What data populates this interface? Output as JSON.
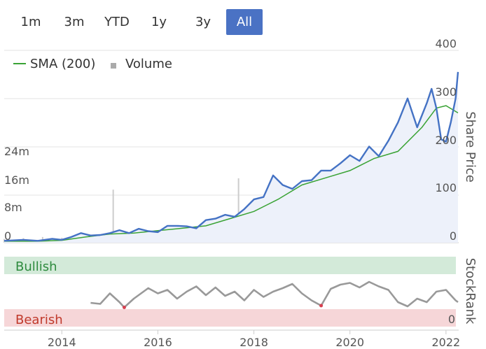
{
  "range_buttons": [
    "1m",
    "3m",
    "YTD",
    "1y",
    "3y",
    "All"
  ],
  "active_range": "All",
  "legend": {
    "sma_label": "SMA (200)",
    "volume_label": "Volume"
  },
  "colors": {
    "price_line": "#4472c4",
    "sma_line": "#3aa335",
    "volume_bar": "#cccccc",
    "bullish_band": "#d3ead9",
    "bearish_band": "#f6d6d8",
    "bullish_text": "#2e8b3e",
    "bearish_text": "#c0392b",
    "rank_line": "#999999",
    "rank_marker": "#d84050",
    "active_button": "#4a72c4",
    "price_fill": "#edf1fa"
  },
  "chart_data": {
    "type": "line",
    "title": "",
    "x_ticks": [
      "2014",
      "2016",
      "2018",
      "2020",
      "2022"
    ],
    "share_price": {
      "axis_label": "Share Price",
      "ylim": [
        0,
        400
      ],
      "y_ticks": [
        "400",
        "300",
        "200",
        "100",
        "0"
      ],
      "series": [
        {
          "name": "Share Price",
          "x": [
            2012.8,
            2013.2,
            2013.5,
            2013.8,
            2014.0,
            2014.2,
            2014.4,
            2014.6,
            2014.8,
            2015.0,
            2015.2,
            2015.4,
            2015.6,
            2015.8,
            2016.0,
            2016.2,
            2016.4,
            2016.6,
            2016.8,
            2017.0,
            2017.2,
            2017.4,
            2017.6,
            2017.8,
            2018.0,
            2018.2,
            2018.4,
            2018.6,
            2018.8,
            2019.0,
            2019.2,
            2019.4,
            2019.6,
            2019.8,
            2020.0,
            2020.2,
            2020.4,
            2020.6,
            2020.8,
            2021.0,
            2021.2,
            2021.4,
            2021.6,
            2021.7,
            2021.8,
            2021.9,
            2022.0,
            2022.1,
            2022.2,
            2022.25
          ],
          "values": [
            4,
            6,
            4,
            8,
            6,
            12,
            20,
            15,
            16,
            20,
            26,
            20,
            29,
            24,
            22,
            35,
            35,
            34,
            30,
            47,
            50,
            58,
            54,
            70,
            90,
            95,
            140,
            120,
            112,
            128,
            130,
            150,
            150,
            165,
            182,
            170,
            200,
            180,
            212,
            250,
            300,
            240,
            290,
            320,
            280,
            215,
            210,
            250,
            300,
            355
          ]
        },
        {
          "name": "SMA (200)",
          "x": [
            2012.8,
            2013.5,
            2014.0,
            2014.5,
            2015.0,
            2015.5,
            2016.0,
            2016.5,
            2017.0,
            2017.5,
            2018.0,
            2018.5,
            2019.0,
            2019.5,
            2020.0,
            2020.5,
            2021.0,
            2021.5,
            2021.8,
            2022.0,
            2022.25
          ],
          "values": [
            3,
            3,
            5,
            12,
            18,
            20,
            25,
            30,
            35,
            50,
            65,
            90,
            120,
            135,
            150,
            175,
            190,
            240,
            280,
            285,
            270
          ]
        }
      ]
    },
    "volume": {
      "axis_ticks": [
        "24m",
        "16m",
        "8m",
        "0"
      ],
      "ylim": [
        0,
        24
      ],
      "unit": "millions",
      "x": [
        2012.8,
        2013.2,
        2013.6,
        2014.0,
        2014.4,
        2014.8,
        2015.07,
        2015.2,
        2015.6,
        2016.0,
        2016.4,
        2016.8,
        2017.2,
        2017.6,
        2017.68,
        2018.0,
        2018.4,
        2018.8,
        2019.2,
        2019.6,
        2020.0,
        2020.4,
        2020.8,
        2021.2,
        2021.6,
        2021.72,
        2021.9,
        2022.1
      ],
      "values": [
        1,
        1.2,
        1.5,
        1.3,
        1.7,
        1.6,
        14,
        2.5,
        2.2,
        3,
        3.5,
        4,
        5.5,
        6,
        17,
        7.5,
        8.5,
        9,
        8,
        8.5,
        9.5,
        8,
        11.5,
        10,
        12.5,
        14,
        11,
        9
      ]
    },
    "stock_rank": {
      "axis_label": "StockRank",
      "zones": [
        "Bullish",
        "Bearish"
      ],
      "visible_ticks": [
        "0"
      ],
      "ylim": [
        0,
        100
      ],
      "x": [
        2014.6,
        2014.8,
        2015.0,
        2015.2,
        2015.3,
        2015.5,
        2015.8,
        2016.0,
        2016.2,
        2016.4,
        2016.6,
        2016.8,
        2017.0,
        2017.2,
        2017.4,
        2017.6,
        2017.8,
        2018.0,
        2018.2,
        2018.4,
        2018.6,
        2018.8,
        2019.0,
        2019.2,
        2019.4,
        2019.6,
        2019.8,
        2020.0,
        2020.2,
        2020.4,
        2020.6,
        2020.8,
        2021.0,
        2021.2,
        2021.4,
        2021.6,
        2021.8,
        2022.0,
        2022.2,
        2022.25
      ],
      "values": [
        18,
        15,
        45,
        20,
        5,
        30,
        60,
        45,
        55,
        30,
        50,
        65,
        40,
        62,
        38,
        50,
        25,
        55,
        35,
        50,
        60,
        72,
        45,
        25,
        10,
        58,
        70,
        75,
        62,
        78,
        65,
        55,
        20,
        8,
        30,
        20,
        50,
        55,
        25,
        20
      ],
      "bearish_markers_x": [
        2015.3,
        2019.4
      ]
    }
  }
}
